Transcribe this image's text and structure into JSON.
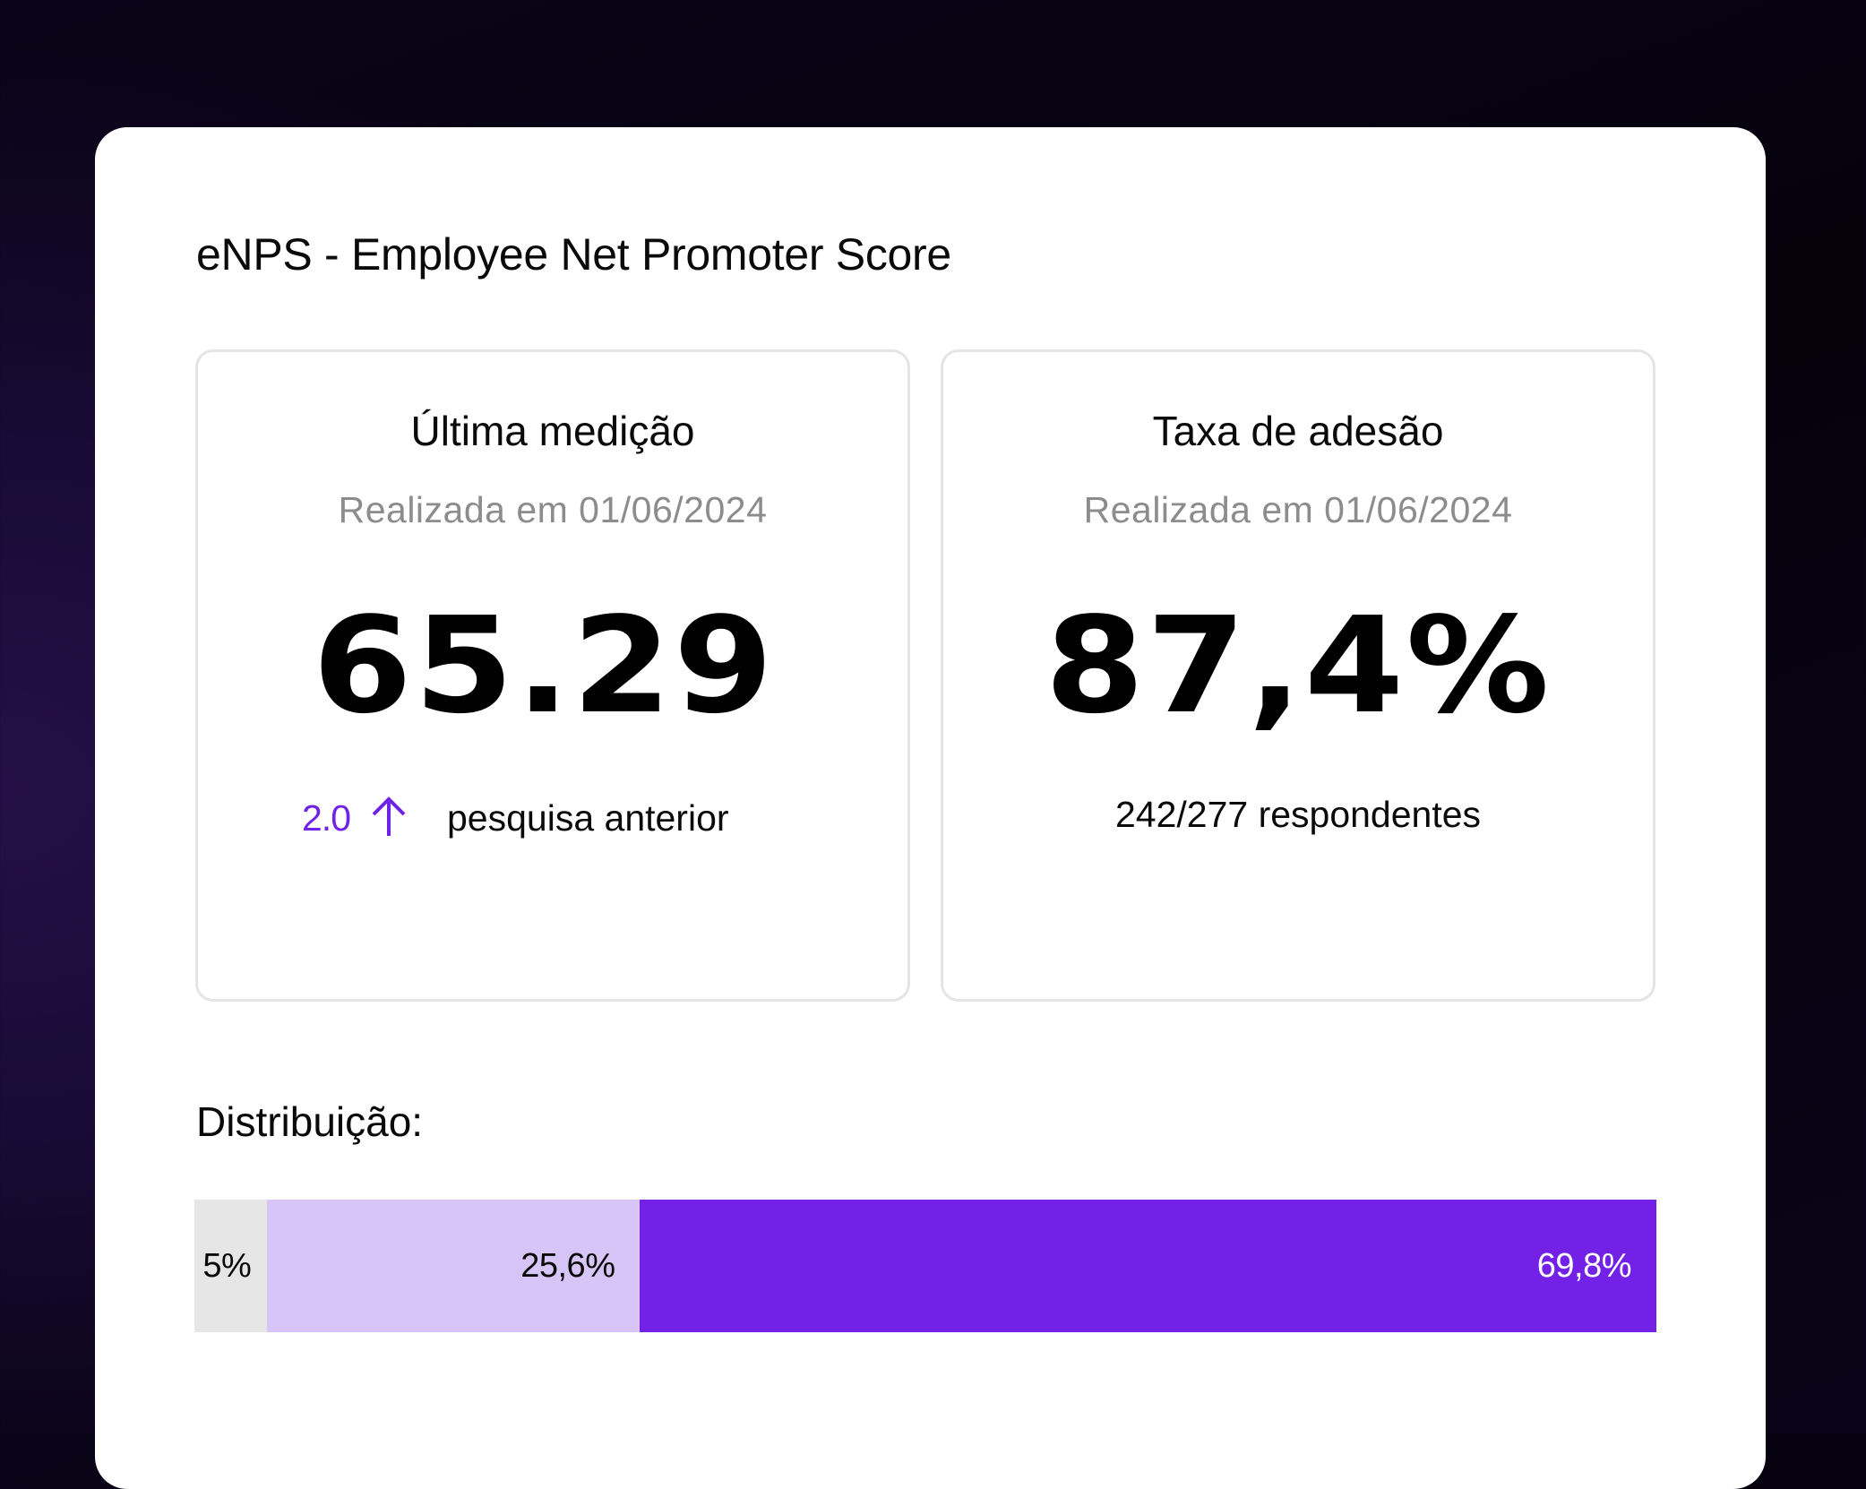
{
  "page": {
    "title": "eNPS - Employee Net Promoter Score"
  },
  "cards": {
    "last_measurement": {
      "title": "Última medição",
      "subtitle": "Realizada em 01/06/2024",
      "value": "65.29",
      "delta": {
        "value": "2.0",
        "direction": "up",
        "icon": "arrow-up-icon",
        "label": "pesquisa anterior"
      }
    },
    "adhesion_rate": {
      "title": "Taxa de adesão",
      "subtitle": "Realizada em 01/06/2024",
      "value": "87,4%",
      "respondents": "242/277 respondentes"
    }
  },
  "distribution": {
    "title": "Distribuição:",
    "segments": [
      {
        "label": "5%",
        "percent": 5,
        "color": "#e6e6e6",
        "text_color": "#0a0a0a"
      },
      {
        "label": "25,6%",
        "percent": 25.6,
        "color": "#d8c5f7",
        "text_color": "#0a0a0a"
      },
      {
        "label": "69,8%",
        "percent": 69.8,
        "color": "#7321e6",
        "text_color": "#ffffff"
      }
    ]
  },
  "colors": {
    "accent": "#7022e6",
    "muted_text": "#8c8c8c",
    "card_border": "#e4e4e4"
  }
}
